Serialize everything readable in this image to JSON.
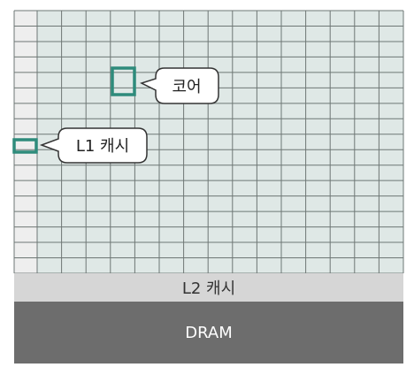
{
  "labels": {
    "core": "코어",
    "l1_cache": "L1 캐시",
    "l2_cache": "L2 캐시",
    "dram": "DRAM"
  },
  "grid": {
    "columns": 15,
    "rows": 17
  },
  "colors": {
    "grid_fill": "#dfe8e6",
    "grid_line": "#6e7775",
    "l1_column_fill": "#eeeeee",
    "highlight_stroke": "#2e8b7b",
    "l2_band": "#d6d6d6",
    "l2_text": "#333333",
    "dram_band": "#6d6d6d",
    "dram_text": "#ffffff",
    "callout_fill": "#ffffff",
    "callout_stroke": "#333333"
  }
}
